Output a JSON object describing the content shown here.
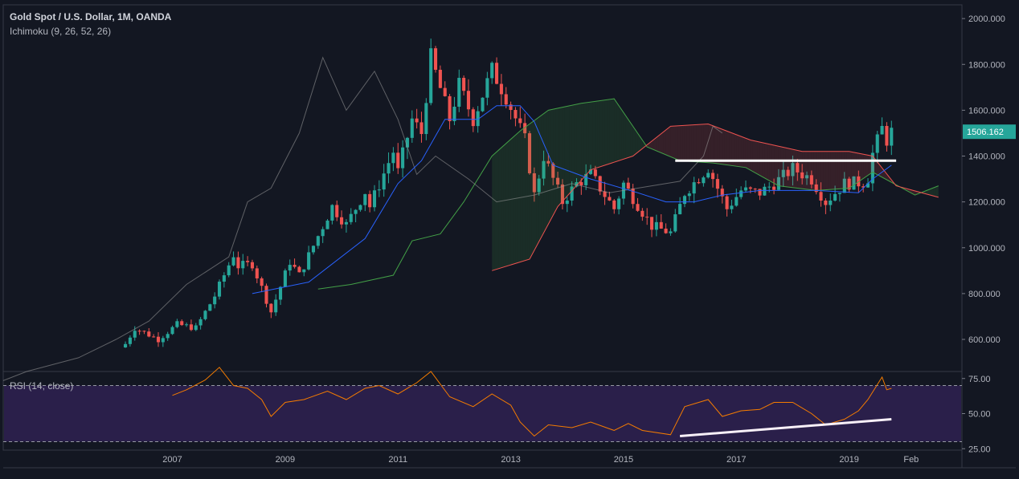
{
  "header": {
    "symbol_title": "Gold Spot / U.S. Dollar, 1M, OANDA",
    "indicator_label": "Ichimoku (9, 26, 52, 26)",
    "rsi_label": "RSI (14, close)"
  },
  "price_axis": {
    "ticks": [
      "600.000",
      "800.000",
      "1000.000",
      "1200.000",
      "1400.000",
      "1600.000",
      "1800.000",
      "2000.000"
    ],
    "last_price": "1506.162"
  },
  "rsi_axis": {
    "ticks": [
      "25.00",
      "50.00",
      "75.00"
    ]
  },
  "time_axis": {
    "ticks": [
      "2007",
      "2009",
      "2011",
      "2013",
      "2015",
      "2017",
      "2019",
      "Feb"
    ]
  },
  "colors": {
    "background": "#131722",
    "up": "#26a69a",
    "down": "#ef5350",
    "conversion_line": "#2962ff",
    "base_line": "#b71c1c",
    "lagging_span": "#9e9e9e",
    "leading_a": "#43a047",
    "leading_b": "#ef5350",
    "rsi_line": "#f57c00",
    "rsi_band": "#2a1f4a"
  },
  "chart_data": [
    {
      "type": "candlestick",
      "title": "Gold Spot / U.S. Dollar, 1M, OANDA",
      "indicator": "Ichimoku (9, 26, 52, 26)",
      "x_start": "2006-03",
      "x_end": "2019-10",
      "interval": "1M",
      "ylim": [
        460,
        2060
      ],
      "close_anchors": [
        [
          "2006-03",
          580
        ],
        [
          "2006-05",
          650
        ],
        [
          "2006-10",
          600
        ],
        [
          "2007-02",
          665
        ],
        [
          "2007-06",
          650
        ],
        [
          "2007-10",
          790
        ],
        [
          "2008-02",
          970
        ],
        [
          "2008-03",
          920
        ],
        [
          "2008-06",
          930
        ],
        [
          "2008-10",
          720
        ],
        [
          "2009-02",
          940
        ],
        [
          "2009-04",
          880
        ],
        [
          "2009-11",
          1180
        ],
        [
          "2010-02",
          1100
        ],
        [
          "2010-06",
          1245
        ],
        [
          "2010-07",
          1180
        ],
        [
          "2010-12",
          1420
        ],
        [
          "2011-01",
          1330
        ],
        [
          "2011-04",
          1560
        ],
        [
          "2011-06",
          1500
        ],
        [
          "2011-08",
          1830
        ],
        [
          "2011-12",
          1560
        ],
        [
          "2012-02",
          1710
        ],
        [
          "2012-05",
          1560
        ],
        [
          "2012-09",
          1775
        ],
        [
          "2012-12",
          1660
        ],
        [
          "2013-04",
          1470
        ],
        [
          "2013-06",
          1230
        ],
        [
          "2013-08",
          1400
        ],
        [
          "2013-12",
          1200
        ],
        [
          "2014-03",
          1280
        ],
        [
          "2014-06",
          1320
        ],
        [
          "2014-11",
          1170
        ],
        [
          "2015-01",
          1280
        ],
        [
          "2015-07",
          1095
        ],
        [
          "2015-11",
          1065
        ],
        [
          "2016-02",
          1240
        ],
        [
          "2016-07",
          1350
        ],
        [
          "2016-11",
          1170
        ],
        [
          "2017-02",
          1250
        ],
        [
          "2017-06",
          1240
        ],
        [
          "2017-09",
          1280
        ],
        [
          "2018-01",
          1345
        ],
        [
          "2018-05",
          1300
        ],
        [
          "2018-08",
          1200
        ],
        [
          "2018-12",
          1280
        ],
        [
          "2019-04",
          1285
        ],
        [
          "2019-05",
          1305
        ],
        [
          "2019-06",
          1410
        ],
        [
          "2019-08",
          1520
        ],
        [
          "2019-09",
          1470
        ],
        [
          "2019-10",
          1506
        ]
      ],
      "overlays": {
        "conversion_line": [
          [
            "2008-06",
            800
          ],
          [
            "2009-06",
            850
          ],
          [
            "2010-06",
            1040
          ],
          [
            "2011-01",
            1280
          ],
          [
            "2011-06",
            1380
          ],
          [
            "2011-11",
            1560
          ],
          [
            "2012-06",
            1560
          ],
          [
            "2012-10",
            1620
          ],
          [
            "2013-03",
            1620
          ],
          [
            "2013-06",
            1550
          ],
          [
            "2013-10",
            1360
          ],
          [
            "2014-06",
            1300
          ],
          [
            "2015-04",
            1240
          ],
          [
            "2015-10",
            1200
          ],
          [
            "2016-04",
            1200
          ],
          [
            "2016-10",
            1230
          ],
          [
            "2017-06",
            1250
          ],
          [
            "2018-06",
            1250
          ],
          [
            "2019-03",
            1240
          ],
          [
            "2019-06",
            1300
          ],
          [
            "2019-10",
            1360
          ]
        ],
        "lagging_span": [
          [
            "2004-01",
            420
          ],
          [
            "2004-06",
            460
          ],
          [
            "2005-05",
            520
          ],
          [
            "2006-01",
            600
          ],
          [
            "2006-08",
            680
          ],
          [
            "2007-04",
            840
          ],
          [
            "2008-01",
            960
          ],
          [
            "2008-05",
            1200
          ],
          [
            "2008-10",
            1260
          ],
          [
            "2009-04",
            1500
          ],
          [
            "2009-09",
            1830
          ],
          [
            "2010-02",
            1600
          ],
          [
            "2010-08",
            1770
          ],
          [
            "2011-01",
            1560
          ],
          [
            "2011-05",
            1320
          ],
          [
            "2011-09",
            1400
          ],
          [
            "2012-04",
            1300
          ],
          [
            "2012-10",
            1200
          ],
          [
            "2013-06",
            1230
          ],
          [
            "2014-02",
            1280
          ],
          [
            "2014-10",
            1240
          ],
          [
            "2015-04",
            1260
          ],
          [
            "2016-01",
            1290
          ],
          [
            "2016-06",
            1400
          ],
          [
            "2016-08",
            1530
          ],
          [
            "2016-10",
            1500
          ]
        ],
        "leading_span_a": [
          [
            "2009-08",
            820
          ],
          [
            "2010-03",
            840
          ],
          [
            "2010-12",
            880
          ],
          [
            "2011-04",
            1030
          ],
          [
            "2011-10",
            1060
          ],
          [
            "2012-03",
            1200
          ],
          [
            "2012-09",
            1400
          ],
          [
            "2013-03",
            1510
          ],
          [
            "2013-09",
            1600
          ],
          [
            "2014-04",
            1630
          ],
          [
            "2014-11",
            1650
          ],
          [
            "2015-06",
            1440
          ],
          [
            "2016-01",
            1380
          ],
          [
            "2016-08",
            1370
          ],
          [
            "2017-03",
            1350
          ],
          [
            "2017-10",
            1270
          ],
          [
            "2018-06",
            1250
          ],
          [
            "2019-01",
            1260
          ],
          [
            "2019-06",
            1330
          ],
          [
            "2020-03",
            1230
          ],
          [
            "2020-08",
            1270
          ]
        ],
        "leading_span_b": [
          [
            "2012-09",
            900
          ],
          [
            "2013-05",
            950
          ],
          [
            "2013-11",
            1180
          ],
          [
            "2014-06",
            1340
          ],
          [
            "2015-03",
            1400
          ],
          [
            "2015-11",
            1530
          ],
          [
            "2016-07",
            1540
          ],
          [
            "2017-04",
            1470
          ],
          [
            "2018-03",
            1420
          ],
          [
            "2019-01",
            1420
          ],
          [
            "2019-06",
            1400
          ],
          [
            "2019-11",
            1270
          ],
          [
            "2020-08",
            1220
          ]
        ]
      },
      "annotations": [
        {
          "type": "horizontal-line",
          "y": 1380,
          "from": "2015-12",
          "to": "2019-11",
          "color": "#ffffff"
        }
      ]
    },
    {
      "type": "line",
      "title": "RSI (14, close)",
      "ylim": [
        24,
        80
      ],
      "bands": [
        30,
        70
      ],
      "points": [
        [
          "2007-01",
          63
        ],
        [
          "2007-04",
          67
        ],
        [
          "2007-08",
          74
        ],
        [
          "2007-11",
          83
        ],
        [
          "2008-02",
          70
        ],
        [
          "2008-05",
          68
        ],
        [
          "2008-08",
          60
        ],
        [
          "2008-10",
          48
        ],
        [
          "2009-01",
          58
        ],
        [
          "2009-05",
          60
        ],
        [
          "2009-10",
          66
        ],
        [
          "2010-02",
          60
        ],
        [
          "2010-06",
          68
        ],
        [
          "2010-09",
          70
        ],
        [
          "2011-01",
          64
        ],
        [
          "2011-05",
          72
        ],
        [
          "2011-08",
          80
        ],
        [
          "2011-12",
          62
        ],
        [
          "2012-05",
          55
        ],
        [
          "2012-09",
          64
        ],
        [
          "2013-01",
          56
        ],
        [
          "2013-03",
          44
        ],
        [
          "2013-06",
          34
        ],
        [
          "2013-09",
          42
        ],
        [
          "2014-02",
          40
        ],
        [
          "2014-06",
          44
        ],
        [
          "2014-11",
          38
        ],
        [
          "2015-02",
          43
        ],
        [
          "2015-05",
          38
        ],
        [
          "2015-11",
          35
        ],
        [
          "2016-02",
          55
        ],
        [
          "2016-07",
          60
        ],
        [
          "2016-10",
          48
        ],
        [
          "2017-02",
          52
        ],
        [
          "2017-06",
          53
        ],
        [
          "2017-09",
          58
        ],
        [
          "2018-01",
          58
        ],
        [
          "2018-05",
          50
        ],
        [
          "2018-08",
          42
        ],
        [
          "2018-12",
          46
        ],
        [
          "2019-03",
          52
        ],
        [
          "2019-05",
          60
        ],
        [
          "2019-08",
          76
        ],
        [
          "2019-09",
          67
        ],
        [
          "2019-10",
          68
        ]
      ],
      "annotations": [
        {
          "type": "trendline",
          "from": [
            "2016-01",
            34
          ],
          "to": [
            "2019-10",
            46
          ],
          "color": "#f8f0f8"
        }
      ]
    }
  ]
}
